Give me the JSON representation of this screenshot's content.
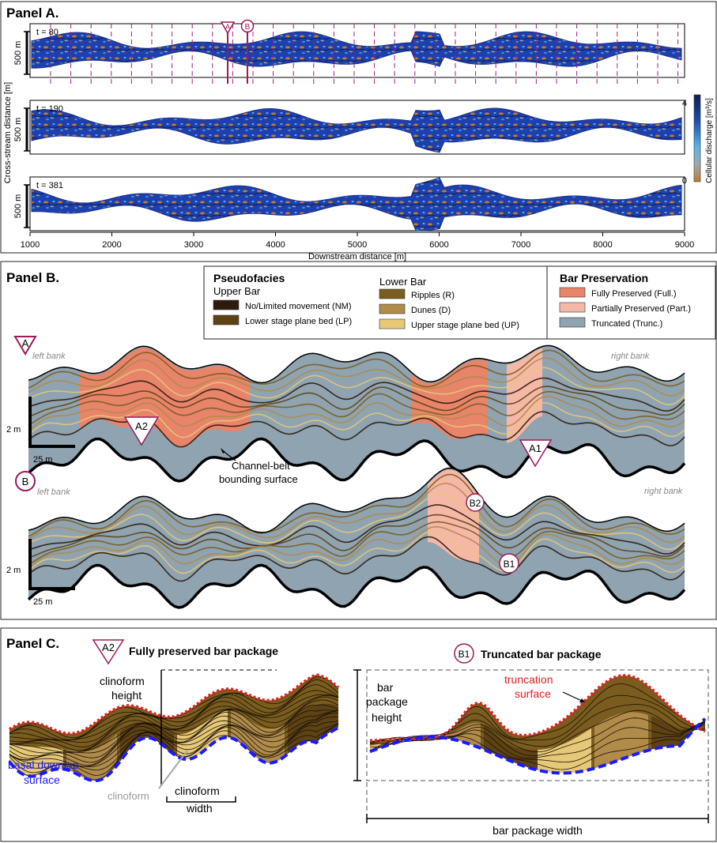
{
  "panelA": {
    "title": "Panel A.",
    "markers": {
      "A": "A",
      "B": "B"
    },
    "strips": [
      {
        "time": "t = 80",
        "scale": "500 m"
      },
      {
        "time": "t = 190",
        "scale": "500 m"
      },
      {
        "time": "t = 381",
        "scale": "500 m"
      }
    ],
    "ylabel": "Cross-stream distance [m]",
    "xlabel": "Downstream distance [m]",
    "xticks": [
      "1000",
      "2000",
      "3000",
      "4000",
      "5000",
      "6000",
      "7000",
      "8000",
      "9000"
    ],
    "colorbar": {
      "label": "Cellular discharge [m³/s]",
      "max": "4",
      "min": "0",
      "colors": [
        "#0b1c50",
        "#1a4fb0",
        "#5ab4e8",
        "#a0a8b0",
        "#c07a30"
      ]
    }
  },
  "panelB": {
    "title": "Panel B.",
    "legend": {
      "pseudofacies_title": "Pseudofacies",
      "upper_bar_title": "Upper Bar",
      "lower_bar_title": "Lower Bar",
      "upper_bar": [
        {
          "label": "No/Limited movement (NM)",
          "color": "#2e1a0c"
        },
        {
          "label": "Lower stage plane bed (LP)",
          "color": "#5e4214"
        }
      ],
      "lower_bar": [
        {
          "label": "Ripples (R)",
          "color": "#7a5c1e"
        },
        {
          "label": "Dunes (D)",
          "color": "#b08b4a"
        },
        {
          "label": "Upper stage plane bed (UP)",
          "color": "#e6c878"
        }
      ],
      "preservation_title": "Bar Preservation",
      "preservation": [
        {
          "label": "Fully Preserved (Full.)",
          "color": "#e8846a"
        },
        {
          "label": "Partially Preserved (Part.)",
          "color": "#f6b8a6"
        },
        {
          "label": "Truncated (Trunc.)",
          "color": "#8fa3b1"
        }
      ]
    },
    "sectionA": {
      "marker": "A",
      "left_bank": "left bank",
      "right_bank": "right bank",
      "scale_v": "2 m",
      "scale_h": "25 m",
      "labels": {
        "A2": "A2",
        "A1": "A1"
      },
      "annotation": [
        "Channel-belt",
        "bounding surface"
      ]
    },
    "sectionB": {
      "marker": "B",
      "left_bank": "left bank",
      "right_bank": "right bank",
      "scale_v": "2 m",
      "scale_h": "25 m",
      "labels": {
        "B2": "B2",
        "B1": "B1"
      }
    }
  },
  "panelC": {
    "title": "Panel C.",
    "left": {
      "marker": "A2",
      "title": "Fully preserved bar package",
      "clino_height": [
        "clinoform",
        "height"
      ],
      "basal": [
        "basal downlap",
        "surface"
      ],
      "clinoform": "clinoform",
      "clino_width": [
        "clinoform",
        "width"
      ]
    },
    "right": {
      "marker": "B1",
      "title": "Truncated bar package",
      "height": [
        "bar",
        "package",
        "height"
      ],
      "truncation": [
        "truncation",
        "surface"
      ],
      "width": "bar package width"
    }
  }
}
